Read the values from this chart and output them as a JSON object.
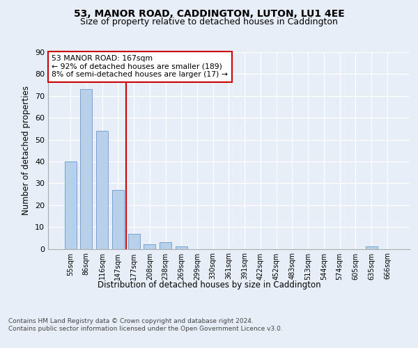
{
  "title": "53, MANOR ROAD, CADDINGTON, LUTON, LU1 4EE",
  "subtitle": "Size of property relative to detached houses in Caddington",
  "xlabel": "Distribution of detached houses by size in Caddington",
  "ylabel": "Number of detached properties",
  "categories": [
    "55sqm",
    "86sqm",
    "116sqm",
    "147sqm",
    "177sqm",
    "208sqm",
    "238sqm",
    "269sqm",
    "299sqm",
    "330sqm",
    "361sqm",
    "391sqm",
    "422sqm",
    "452sqm",
    "483sqm",
    "513sqm",
    "544sqm",
    "574sqm",
    "605sqm",
    "635sqm",
    "666sqm"
  ],
  "values": [
    40,
    73,
    54,
    27,
    7,
    2,
    3,
    1,
    0,
    0,
    0,
    0,
    0,
    0,
    0,
    0,
    0,
    0,
    0,
    1,
    0
  ],
  "bar_color": "#b8d0ea",
  "bar_edge_color": "#6699cc",
  "vline_x_index": 4,
  "vline_color": "#cc0000",
  "annotation_line1": "53 MANOR ROAD: 167sqm",
  "annotation_line2": "← 92% of detached houses are smaller (189)",
  "annotation_line3": "8% of semi-detached houses are larger (17) →",
  "annotation_box_color": "#ffffff",
  "annotation_box_edge_color": "#cc0000",
  "ylim": [
    0,
    90
  ],
  "yticks": [
    0,
    10,
    20,
    30,
    40,
    50,
    60,
    70,
    80,
    90
  ],
  "footer_text": "Contains HM Land Registry data © Crown copyright and database right 2024.\nContains public sector information licensed under the Open Government Licence v3.0.",
  "title_fontsize": 10,
  "subtitle_fontsize": 9,
  "xlabel_fontsize": 8.5,
  "ylabel_fontsize": 8.5,
  "bg_color": "#e8eef8",
  "plot_bg_color": "#e8eef8"
}
